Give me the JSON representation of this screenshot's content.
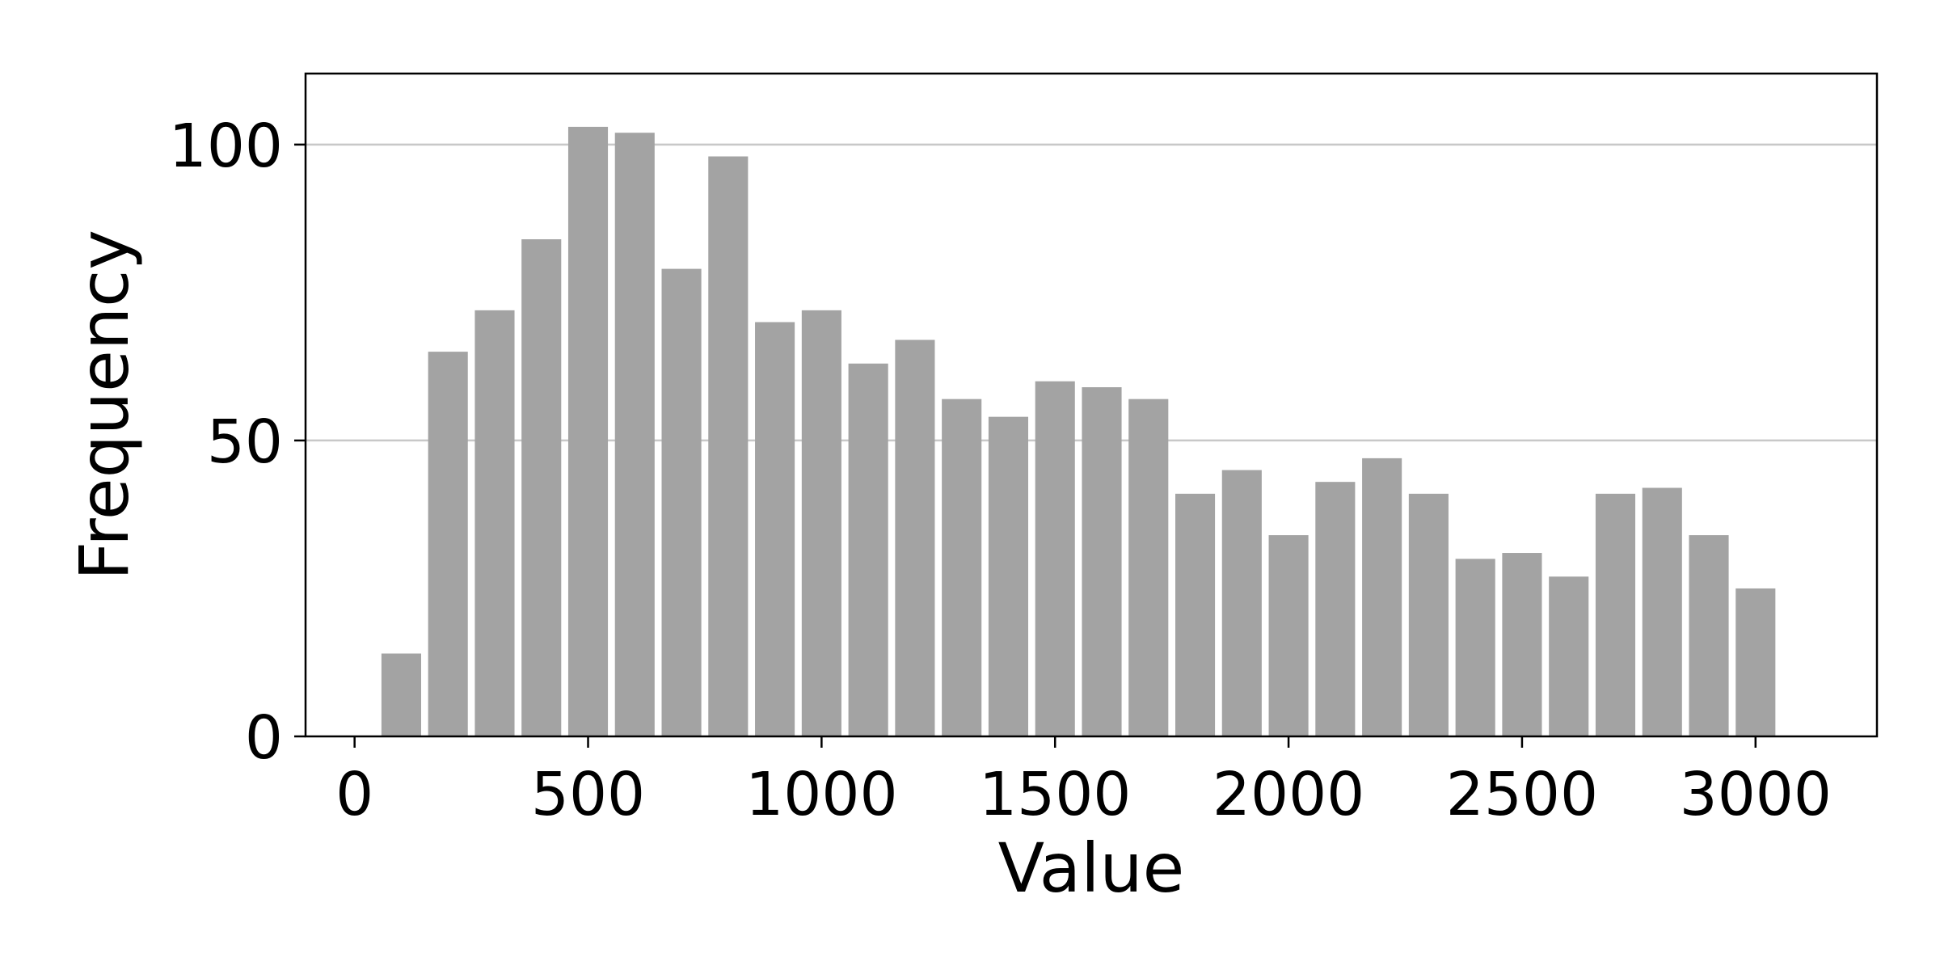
{
  "chart_data": {
    "type": "bar",
    "title": "",
    "xlabel": "Value",
    "ylabel": "Frequency",
    "bin_width": 100,
    "x": [
      100,
      200,
      300,
      400,
      500,
      600,
      700,
      800,
      900,
      1000,
      1100,
      1200,
      1300,
      1400,
      1500,
      1600,
      1700,
      1800,
      1900,
      2000,
      2100,
      2200,
      2300,
      2400,
      2500,
      2600,
      2700,
      2800,
      2900,
      3000
    ],
    "values": [
      14,
      65,
      72,
      84,
      103,
      102,
      79,
      98,
      70,
      72,
      63,
      67,
      57,
      54,
      60,
      59,
      57,
      41,
      45,
      34,
      43,
      47,
      41,
      30,
      31,
      27,
      41,
      42,
      34,
      25
    ],
    "xlim": [
      -105,
      3260
    ],
    "ylim": [
      0,
      112
    ],
    "x_ticks": [
      0,
      500,
      1000,
      1500,
      2000,
      2500,
      3000
    ],
    "y_ticks": [
      0,
      50,
      100
    ],
    "grid": "horizontal",
    "colors": {
      "bar": "#a3a3a3",
      "grid": "#c8c8c8",
      "axis": "#000000"
    }
  }
}
